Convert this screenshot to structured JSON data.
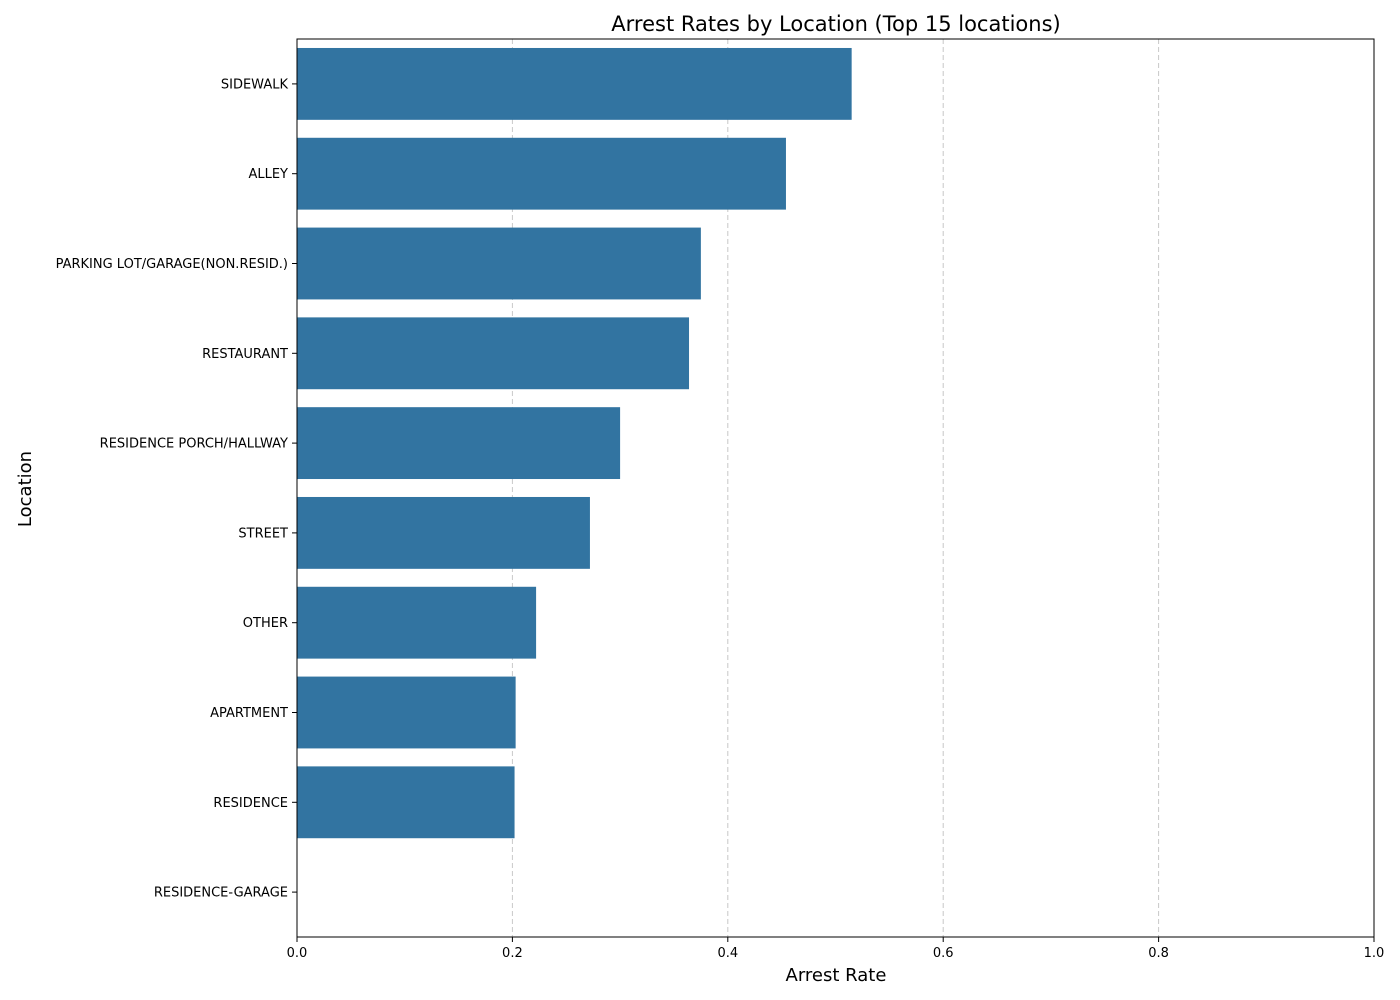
{
  "chart_data": {
    "type": "bar",
    "orientation": "horizontal",
    "title": "Arrest Rates by Location (Top 15 locations)",
    "xlabel": "Arrest Rate",
    "ylabel": "Location",
    "categories": [
      "SIDEWALK",
      "ALLEY",
      "PARKING LOT/GARAGE(NON.RESID.)",
      "RESTAURANT",
      "RESIDENCE PORCH/HALLWAY",
      "STREET",
      "OTHER",
      "APARTMENT",
      "RESIDENCE",
      "RESIDENCE-GARAGE"
    ],
    "values": [
      0.515,
      0.454,
      0.375,
      0.364,
      0.3,
      0.272,
      0.222,
      0.203,
      0.202,
      0.0
    ],
    "xlim": [
      0,
      1.0
    ],
    "xticks": [
      "0.0",
      "0.2",
      "0.4",
      "0.6",
      "0.8",
      "1.0"
    ],
    "grid": "x-dashed",
    "bar_color": "#3274a1",
    "grid_color": "#c8c8c8"
  }
}
